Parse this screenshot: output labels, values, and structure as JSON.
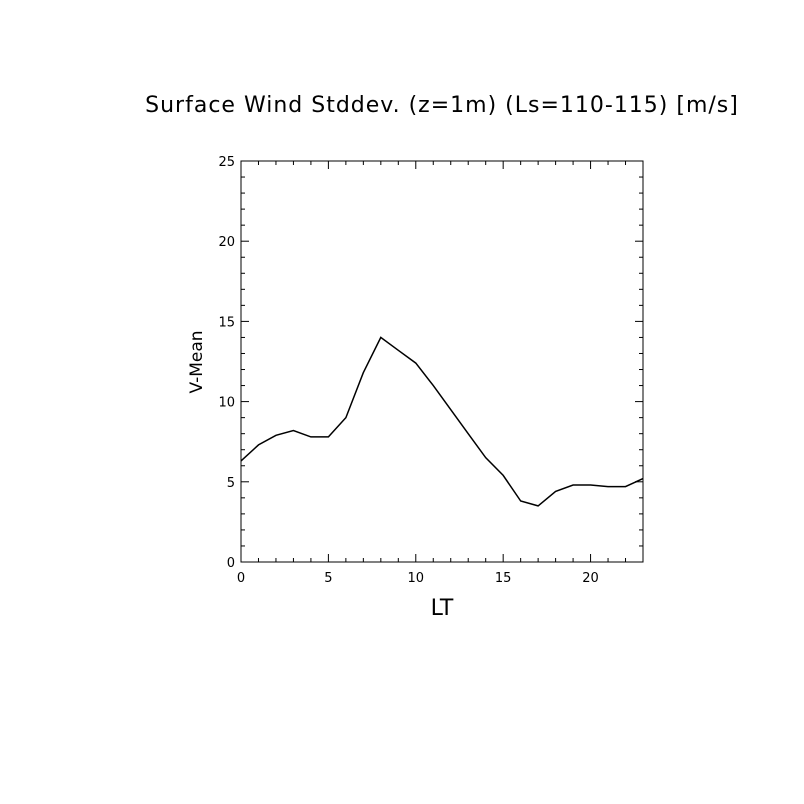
{
  "chart_data": {
    "type": "line",
    "title": "Surface Wind Stddev. (z=1m) (Ls=110-115) [m/s]",
    "xlabel": "LT",
    "ylabel": "V-Mean",
    "xlim": [
      0,
      23
    ],
    "ylim": [
      0,
      25
    ],
    "x_ticks": [
      0,
      5,
      10,
      15,
      20
    ],
    "y_ticks": [
      0,
      5,
      10,
      15,
      20,
      25
    ],
    "x_tick_labels": [
      "0",
      "5",
      "10",
      "15",
      "20"
    ],
    "y_tick_labels": [
      "0",
      "5",
      "10",
      "15",
      "20",
      "25"
    ],
    "grid": false,
    "colors": {
      "line": "#000000",
      "axes": "#000000",
      "background": "#ffffff"
    },
    "series": [
      {
        "x": [
          0,
          1,
          2,
          3,
          4,
          5,
          6,
          7,
          8,
          9,
          10,
          11,
          12,
          13,
          14,
          15,
          16,
          17,
          18,
          19,
          20,
          21,
          22,
          23
        ],
        "values": [
          6.3,
          7.3,
          7.9,
          8.2,
          7.8,
          7.8,
          9.0,
          11.8,
          14.0,
          13.2,
          12.4,
          11.0,
          9.5,
          8.0,
          6.5,
          5.4,
          3.8,
          3.5,
          4.4,
          4.8,
          4.8,
          4.7,
          4.7,
          5.2
        ]
      }
    ]
  }
}
